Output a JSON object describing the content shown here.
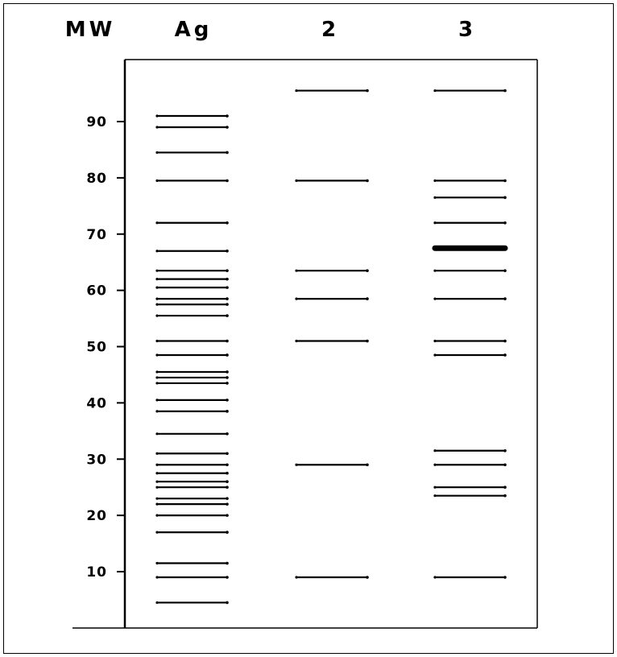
{
  "headers": {
    "mw": "MW",
    "ag": "Ag",
    "lane2": "2",
    "lane3": "3"
  },
  "chart_data": {
    "type": "gel-band-diagram",
    "y_axis": {
      "label": "MW",
      "ticks": [
        10,
        20,
        30,
        40,
        50,
        60,
        70,
        80,
        90
      ]
    },
    "lanes": [
      {
        "name": "Ag",
        "bands": [
          91,
          89,
          84.5,
          79.5,
          72,
          67,
          63.5,
          62,
          60.5,
          58.5,
          57.5,
          55.5,
          51,
          48.5,
          45.5,
          44.5,
          43.5,
          40.5,
          38.5,
          34.5,
          31,
          29,
          27.5,
          26,
          25,
          23,
          22,
          20,
          17,
          11.5,
          9,
          4.5
        ]
      },
      {
        "name": "2",
        "bands": [
          95.5,
          79.5,
          63.5,
          58.5,
          51,
          29,
          9
        ]
      },
      {
        "name": "3",
        "bands": [
          95.5,
          79.5,
          76.5,
          72,
          67.5,
          63.5,
          58.5,
          51,
          48.5,
          31.5,
          29,
          25,
          23.5,
          9
        ],
        "heavy_band": 67.5
      }
    ]
  }
}
